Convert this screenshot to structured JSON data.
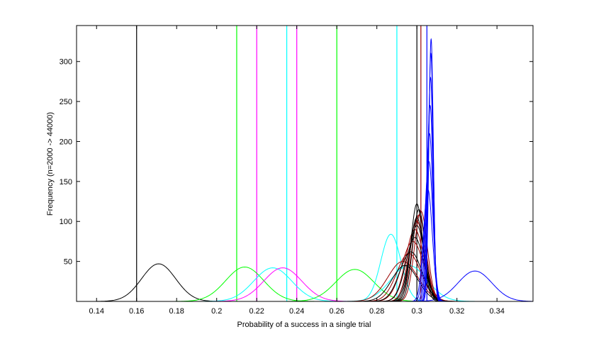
{
  "chart_data": {
    "type": "line",
    "title": "",
    "xlabel": "Probability of a success in a single trial",
    "ylabel": "Frequency (n=2000 -> 44000)",
    "xlim": [
      0.13,
      0.358
    ],
    "ylim": [
      0,
      345
    ],
    "xticks": [
      0.14,
      0.16,
      0.18,
      0.2,
      0.22,
      0.24,
      0.26,
      0.28,
      0.3,
      0.32,
      0.34
    ],
    "xtick_labels": [
      "0.14",
      "0.16",
      "0.18",
      "0.2",
      "0.22",
      "0.24",
      "0.26",
      "0.28",
      "0.3",
      "0.32",
      "0.34"
    ],
    "yticks": [
      50,
      100,
      150,
      200,
      250,
      300
    ],
    "ytick_labels": [
      "50",
      "100",
      "150",
      "200",
      "250",
      "300"
    ],
    "grid": false,
    "colors": {
      "black": "#000000",
      "green": "#00ff00",
      "magenta": "#ff00ff",
      "cyan": "#00ffff",
      "red": "#990000",
      "blue": "#0000ff"
    },
    "vertical_lines": [
      {
        "x": 0.16,
        "color": "black"
      },
      {
        "x": 0.21,
        "color": "green"
      },
      {
        "x": 0.22,
        "color": "magenta"
      },
      {
        "x": 0.235,
        "color": "cyan"
      },
      {
        "x": 0.24,
        "color": "magenta"
      },
      {
        "x": 0.26,
        "color": "green"
      },
      {
        "x": 0.29,
        "color": "cyan"
      },
      {
        "x": 0.3,
        "color": "black"
      },
      {
        "x": 0.302,
        "color": "red"
      },
      {
        "x": 0.305,
        "color": "blue"
      }
    ],
    "series": [
      {
        "color": "black",
        "mean": 0.171,
        "sd": 0.0085,
        "peak": 47
      },
      {
        "color": "green",
        "mean": 0.214,
        "sd": 0.0095,
        "peak": 43
      },
      {
        "color": "cyan",
        "mean": 0.228,
        "sd": 0.0095,
        "peak": 42
      },
      {
        "color": "magenta",
        "mean": 0.233,
        "sd": 0.0095,
        "peak": 42
      },
      {
        "color": "green",
        "mean": 0.269,
        "sd": 0.0095,
        "peak": 40
      },
      {
        "color": "cyan",
        "mean": 0.287,
        "sd": 0.005,
        "peak": 84
      },
      {
        "color": "cyan",
        "mean": 0.296,
        "sd": 0.009,
        "peak": 45
      },
      {
        "color": "blue",
        "mean": 0.329,
        "sd": 0.0085,
        "peak": 38
      },
      {
        "color": "red",
        "mean": 0.293,
        "sd": 0.0075,
        "peak": 50
      },
      {
        "color": "red",
        "mean": 0.296,
        "sd": 0.006,
        "peak": 60
      },
      {
        "color": "red",
        "mean": 0.298,
        "sd": 0.0055,
        "peak": 75
      },
      {
        "color": "red",
        "mean": 0.299,
        "sd": 0.0045,
        "peak": 90
      },
      {
        "color": "red",
        "mean": 0.3,
        "sd": 0.004,
        "peak": 100
      },
      {
        "color": "red",
        "mean": 0.301,
        "sd": 0.0035,
        "peak": 108
      },
      {
        "color": "red",
        "mean": 0.302,
        "sd": 0.0032,
        "peak": 113
      },
      {
        "color": "black",
        "mean": 0.294,
        "sd": 0.0065,
        "peak": 45
      },
      {
        "color": "black",
        "mean": 0.297,
        "sd": 0.0055,
        "peak": 62
      },
      {
        "color": "black",
        "mean": 0.299,
        "sd": 0.0045,
        "peak": 80
      },
      {
        "color": "black",
        "mean": 0.3,
        "sd": 0.0038,
        "peak": 95
      },
      {
        "color": "black",
        "mean": 0.3,
        "sd": 0.0034,
        "peak": 105
      },
      {
        "color": "black",
        "mean": 0.301,
        "sd": 0.0031,
        "peak": 115
      },
      {
        "color": "black",
        "mean": 0.3,
        "sd": 0.003,
        "peak": 122
      },
      {
        "color": "blue",
        "mean": 0.3055,
        "sd": 0.0022,
        "peak": 140
      },
      {
        "color": "blue",
        "mean": 0.306,
        "sd": 0.002,
        "peak": 175
      },
      {
        "color": "blue",
        "mean": 0.3063,
        "sd": 0.0017,
        "peak": 210
      },
      {
        "color": "blue",
        "mean": 0.3066,
        "sd": 0.0015,
        "peak": 245
      },
      {
        "color": "blue",
        "mean": 0.3068,
        "sd": 0.0013,
        "peak": 280
      },
      {
        "color": "blue",
        "mean": 0.307,
        "sd": 0.0012,
        "peak": 310
      },
      {
        "color": "blue",
        "mean": 0.3071,
        "sd": 0.0011,
        "peak": 328
      }
    ]
  }
}
